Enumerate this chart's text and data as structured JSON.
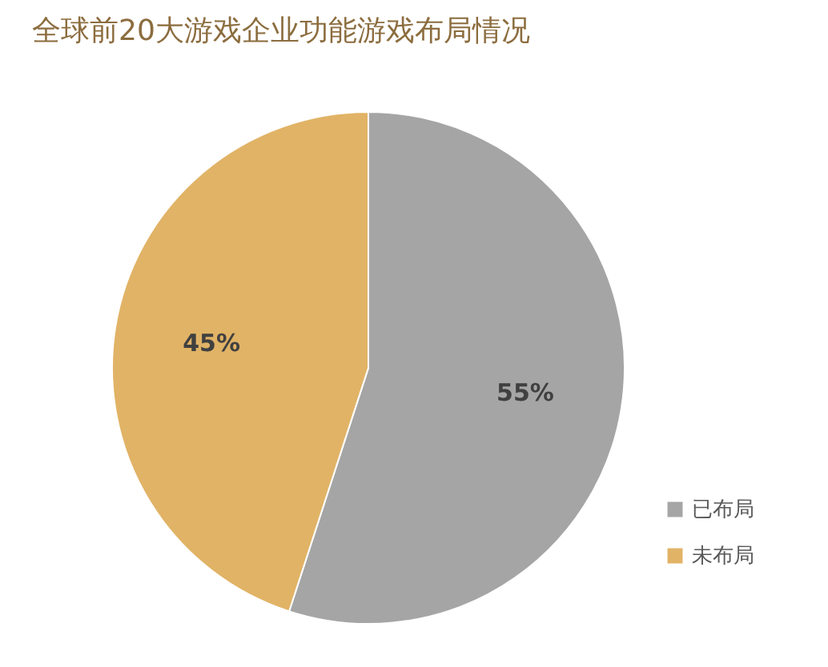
{
  "chart_data": {
    "type": "pie",
    "title": "全球前20大游戏企业功能游戏布局情况",
    "categories": [
      "已布局",
      "未布局"
    ],
    "values": [
      55,
      45
    ],
    "colors": [
      "#a5a5a5",
      "#e1b366"
    ],
    "value_labels": [
      "55%",
      "45%"
    ],
    "legend": "bottom right"
  }
}
